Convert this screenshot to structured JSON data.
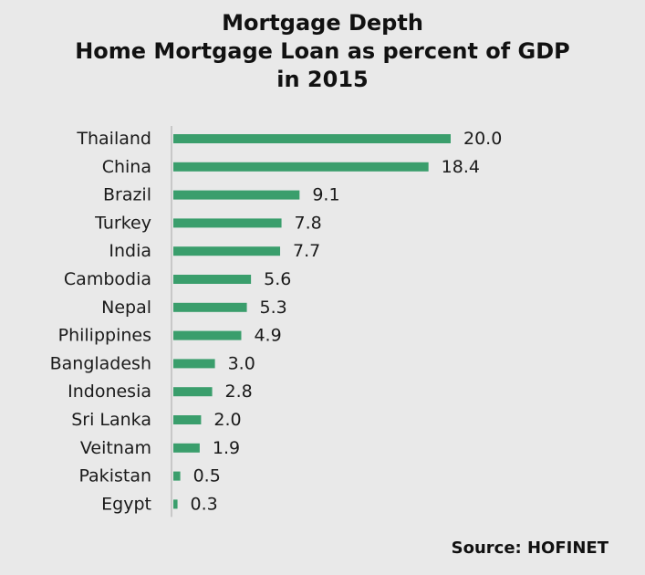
{
  "title_lines": [
    "Mortgage Depth",
    "Home Mortgage Loan as percent of GDP",
    "in 2015"
  ],
  "source": "Source: HOFINET",
  "colors": {
    "bar": "#3a9e6c",
    "axis": "#bdbdbd",
    "background": "#e9e9e9"
  },
  "chart_data": {
    "type": "bar",
    "orientation": "horizontal",
    "title": "Mortgage Depth Home Mortgage Loan as percent of GDP in 2015",
    "categories": [
      "Thailand",
      "China",
      "Brazil",
      "Turkey",
      "India",
      "Cambodia",
      "Nepal",
      "Philippines",
      "Bangladesh",
      "Indonesia",
      "Sri Lanka",
      "Veitnam",
      "Pakistan",
      "Egypt"
    ],
    "values": [
      20.0,
      18.4,
      9.1,
      7.8,
      7.7,
      5.6,
      5.3,
      4.9,
      3.0,
      2.8,
      2.0,
      1.9,
      0.5,
      0.3
    ],
    "value_labels": [
      "20.0",
      "18.4",
      "9.1",
      "7.8",
      "7.7",
      "5.6",
      "5.3",
      "4.9",
      "3.0",
      "2.8",
      "2.0",
      "1.9",
      "0.5",
      "0.3"
    ],
    "xlim": [
      0,
      20
    ],
    "grid": false,
    "legend": "none"
  }
}
